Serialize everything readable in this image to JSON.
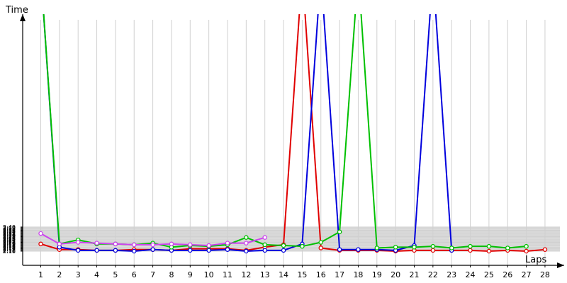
{
  "chart_data": {
    "type": "line",
    "xlabel": "Laps",
    "ylabel": "Time",
    "grid": true,
    "legend": "none",
    "x": [
      1,
      2,
      3,
      4,
      5,
      6,
      7,
      8,
      9,
      10,
      11,
      12,
      13,
      14,
      15,
      16,
      17,
      18,
      19,
      20,
      21,
      22,
      23,
      24,
      25,
      26,
      27,
      28
    ],
    "x_range": [
      1,
      28
    ],
    "ylim": [
      "2:09",
      "2:43"
    ],
    "y_tick_labels": [
      "2:10",
      "2:11",
      "2:12",
      "2:13",
      "2:14",
      "2:15",
      "2:16",
      "2:17",
      "2:18",
      "2:19",
      "2:20",
      "2:21",
      "2:22",
      "2:23",
      "2:24",
      "2:25",
      "2:26",
      "2:27",
      "2:28",
      "2:29",
      "2:30",
      "2:31",
      "2:32",
      "2:33",
      "2:34",
      "2:35",
      "2:36",
      "2:37",
      "2:38",
      "2:39",
      "2:40"
    ],
    "series": [
      {
        "color": "#e00000",
        "values": [
          "2:19",
          "2:12",
          "2:12",
          "2:11",
          "2:11",
          "2:12",
          "2:12",
          "2:11",
          "2:13",
          "2:13",
          "2:13",
          "2:11",
          "2:15",
          "2:18",
          "off-scale",
          "2:14",
          "2:11",
          "2:11",
          "2:11",
          "2:10",
          "2:11",
          "2:11",
          "2:11",
          "2:11",
          "2:10",
          "2:11",
          "2:10",
          "2:12"
        ]
      },
      {
        "color": "#0000dd",
        "values": [
          "off-scale",
          "2:15",
          "2:11",
          "2:11",
          "2:11",
          "2:10",
          "2:12",
          "2:11",
          "2:11",
          "2:11",
          "2:12",
          "2:10",
          "2:11",
          "2:11",
          "2:19",
          "off-scale",
          "2:12",
          "2:12",
          "2:12",
          "2:11",
          "2:17",
          "off-scale",
          "2:11",
          null,
          null,
          null,
          null,
          null
        ]
      },
      {
        "color": "#00c000",
        "values": [
          "off-scale",
          "2:19",
          "2:24",
          "2:19",
          "2:19",
          "2:18",
          "2:20",
          "2:15",
          "2:17",
          "2:16",
          "2:18",
          "2:27",
          "2:18",
          "2:17",
          "2:16",
          "2:21",
          "2:34",
          "off-scale",
          "2:14",
          "2:15",
          "2:15",
          "2:16",
          "2:14",
          "2:16",
          "2:16",
          "2:14",
          "2:16",
          null
        ]
      },
      {
        "color": "#cc44ee",
        "values": [
          "2:32",
          "2:19",
          "2:21",
          "2:20",
          "2:19",
          "2:18",
          "2:18",
          "2:19",
          "2:18",
          "2:17",
          "2:20",
          "2:20",
          "2:27",
          null,
          null,
          null,
          null,
          null,
          null,
          null,
          null,
          null,
          null,
          null,
          null,
          null,
          null,
          null
        ]
      }
    ]
  }
}
